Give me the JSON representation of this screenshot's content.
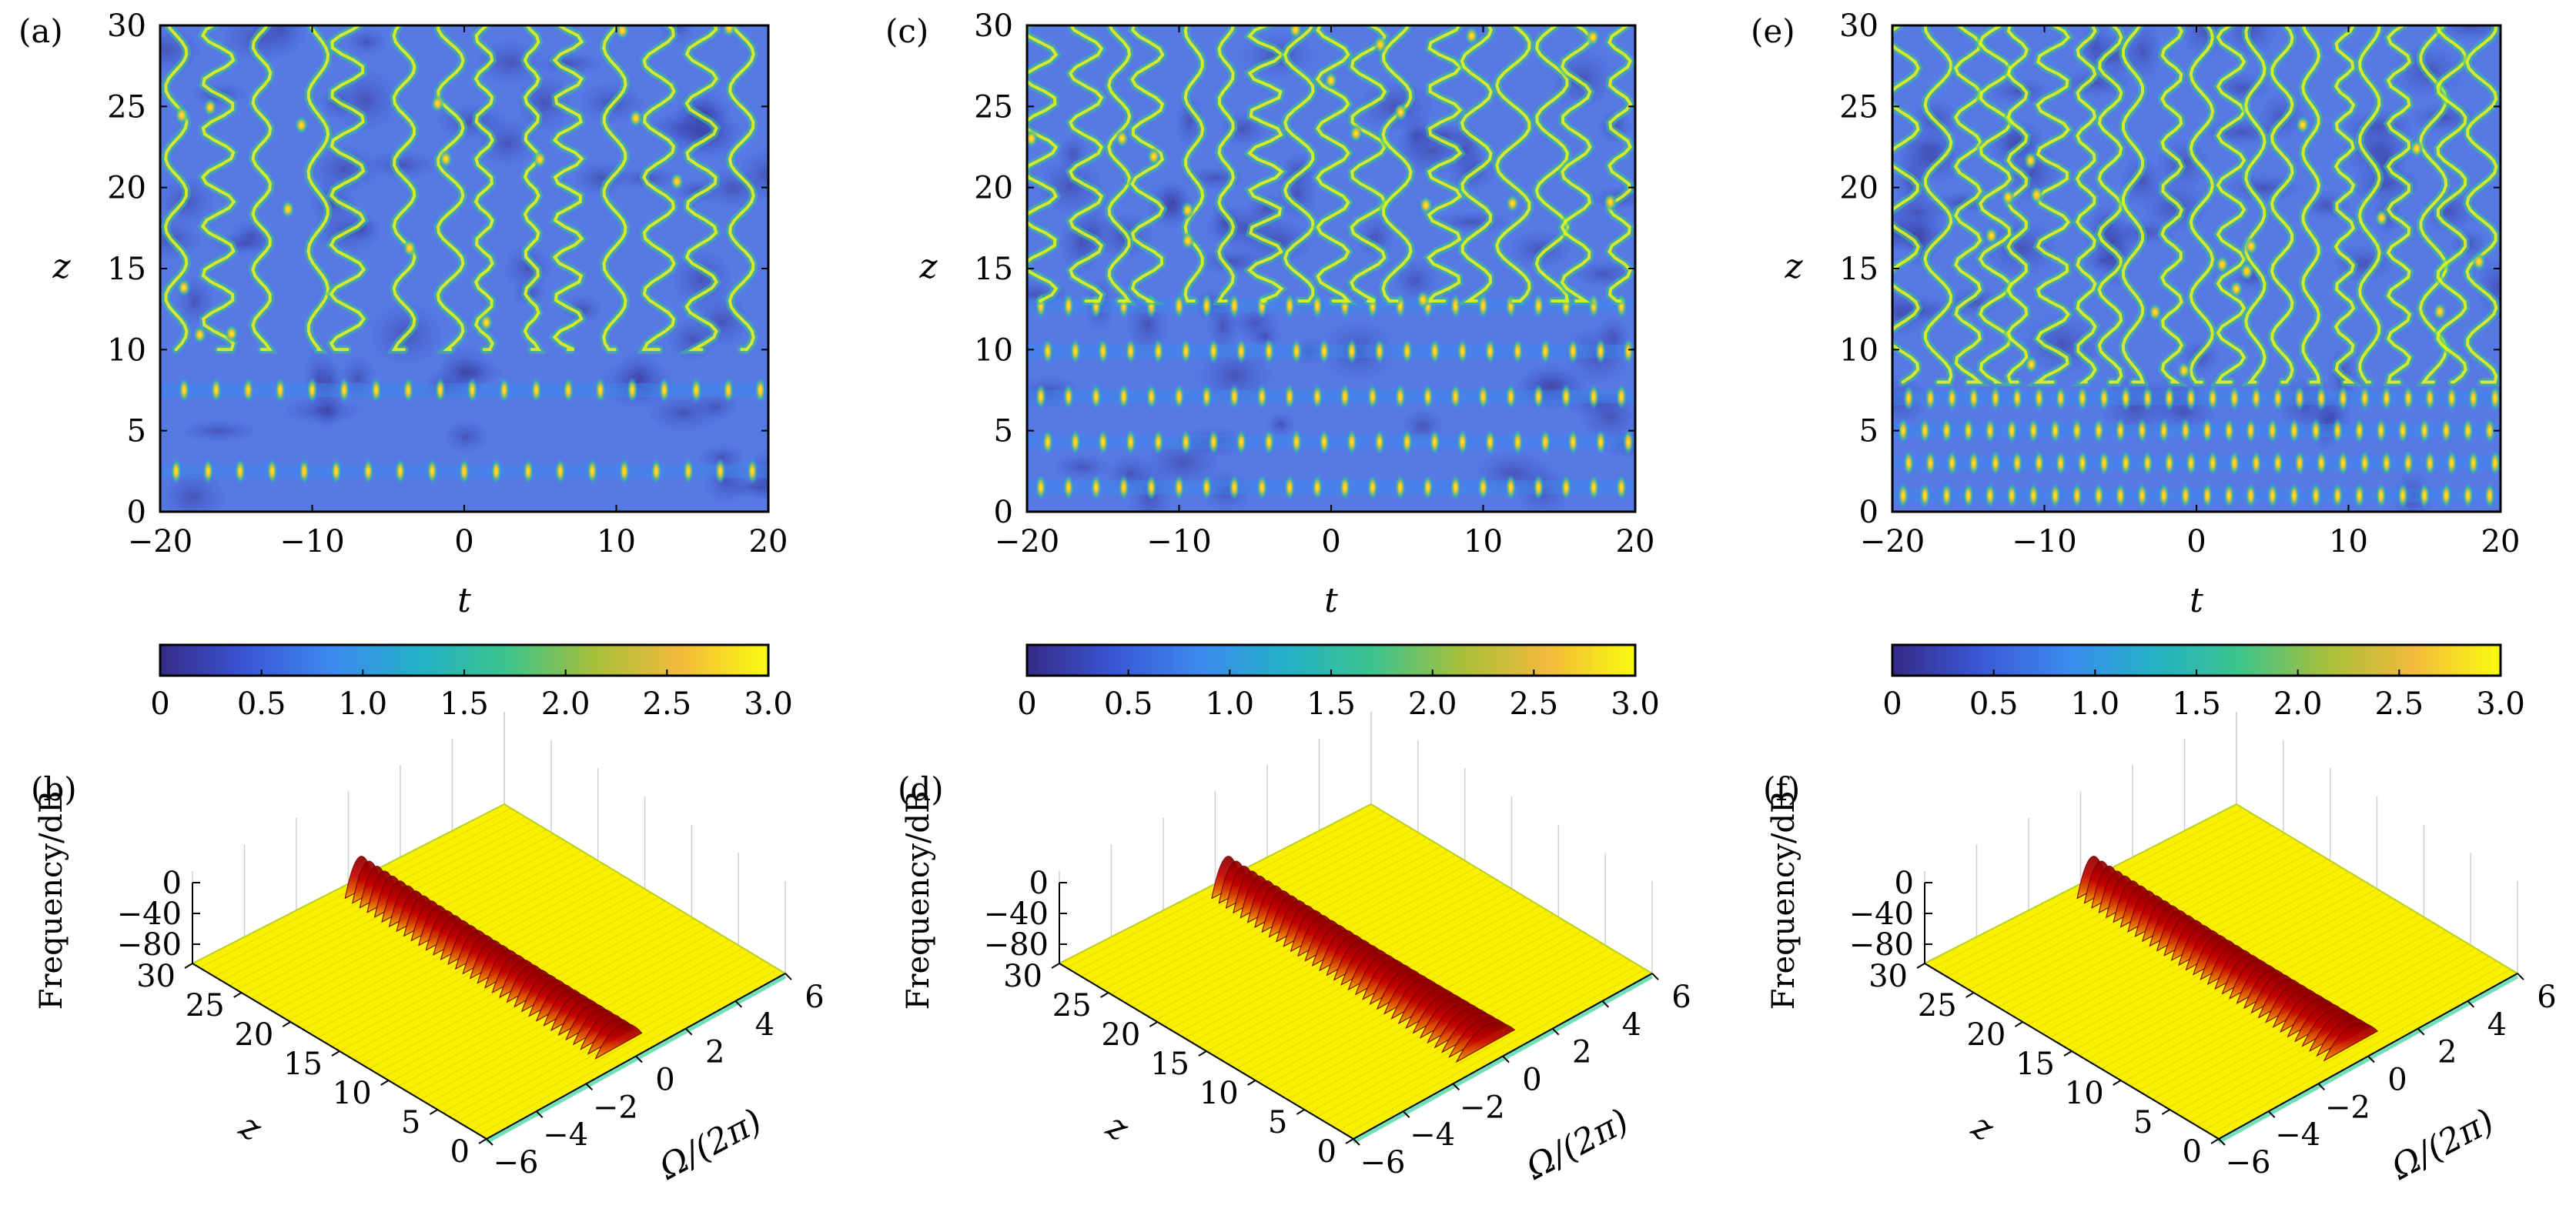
{
  "colors": {
    "colormap": [
      "#352a87",
      "#3a56d6",
      "#3c8aef",
      "#22b1c6",
      "#3dc48d",
      "#a6bf3a",
      "#f4ba3c",
      "#f9fb0e"
    ],
    "spectrum": [
      "#f9f400",
      "#f0b000",
      "#e05a00",
      "#c40000",
      "#8a0000"
    ],
    "frame": "#000000"
  },
  "chart_data": [
    {
      "panel_label": "(a)",
      "type": "heatmap",
      "xlabel": "t",
      "ylabel": "z",
      "xlim": [
        -20,
        20
      ],
      "ylim": [
        0,
        30
      ],
      "xticks": [
        "−20",
        "−10",
        "0",
        "10",
        "20"
      ],
      "yticks": [
        "0",
        "5",
        "10",
        "15",
        "20",
        "25",
        "30"
      ],
      "colorbar": {
        "range": [
          0,
          3.0
        ],
        "ticks": [
          "0",
          "0.5",
          "1.0",
          "1.5",
          "2.0",
          "2.5",
          "3.0"
        ]
      },
      "bright_rows_z": [
        2.5,
        7.5
      ],
      "columns_per_row": 19,
      "turbulence_z_start": 10
    },
    {
      "panel_label": "(c)",
      "type": "heatmap",
      "xlabel": "t",
      "ylabel": "z",
      "xlim": [
        -20,
        20
      ],
      "ylim": [
        0,
        30
      ],
      "xticks": [
        "−20",
        "−10",
        "0",
        "10",
        "20"
      ],
      "yticks": [
        "0",
        "5",
        "10",
        "15",
        "20",
        "25",
        "30"
      ],
      "colorbar": {
        "range": [
          0,
          3.0
        ],
        "ticks": [
          "0",
          "0.5",
          "1.0",
          "1.5",
          "2.0",
          "2.5",
          "3.0"
        ]
      },
      "bright_rows_z": [
        1.5,
        4.3,
        7.1,
        9.9,
        12.7
      ],
      "columns_per_row": 22,
      "turbulence_z_start": 13
    },
    {
      "panel_label": "(e)",
      "type": "heatmap",
      "xlabel": "t",
      "ylabel": "z",
      "xlim": [
        -20,
        20
      ],
      "ylim": [
        0,
        30
      ],
      "xticks": [
        "−20",
        "−10",
        "0",
        "10",
        "20"
      ],
      "yticks": [
        "0",
        "5",
        "10",
        "15",
        "20",
        "25",
        "30"
      ],
      "colorbar": {
        "range": [
          0,
          3.0
        ],
        "ticks": [
          "0",
          "0.5",
          "1.0",
          "1.5",
          "2.0",
          "2.5",
          "3.0"
        ]
      },
      "bright_rows_z": [
        1.0,
        3.0,
        5.0,
        7.0
      ],
      "columns_per_row": 28,
      "turbulence_z_start": 8
    },
    {
      "panel_label": "(b)",
      "type": "area",
      "zlabel": "Frequency/dB",
      "ylabel": "z",
      "xlabel": "Ω/(2π)",
      "zticks": [
        "0",
        "−40",
        "−80"
      ],
      "zlim": [
        -80,
        0
      ],
      "yticks": [
        "0",
        "5",
        "10",
        "15",
        "20",
        "25",
        "30"
      ],
      "ylim": [
        0,
        30
      ],
      "xticks": [
        "−6",
        "−4",
        "−2",
        "0",
        "2",
        "4",
        "6"
      ],
      "xlim": [
        -6,
        6
      ],
      "peak_half_width": [
        0.55,
        0.95
      ]
    },
    {
      "panel_label": "(d)",
      "type": "area",
      "zlabel": "Frequency/dB",
      "ylabel": "z",
      "xlabel": "Ω/(2π)",
      "zticks": [
        "0",
        "−40",
        "−80"
      ],
      "zlim": [
        -80,
        0
      ],
      "yticks": [
        "0",
        "5",
        "10",
        "15",
        "20",
        "25",
        "30"
      ],
      "ylim": [
        0,
        30
      ],
      "xticks": [
        "−6",
        "−4",
        "−2",
        "0",
        "2",
        "4",
        "6"
      ],
      "xlim": [
        -6,
        6
      ],
      "peak_half_width": [
        0.55,
        1.2
      ]
    },
    {
      "panel_label": "(f)",
      "type": "area",
      "zlabel": "Frequency/dB",
      "ylabel": "z",
      "xlabel": "Ω/(2π)",
      "zticks": [
        "0",
        "−40",
        "−80"
      ],
      "zlim": [
        -80,
        0
      ],
      "yticks": [
        "0",
        "5",
        "10",
        "15",
        "20",
        "25",
        "30"
      ],
      "ylim": [
        0,
        30
      ],
      "xticks": [
        "−6",
        "−4",
        "−2",
        "0",
        "2",
        "4",
        "6"
      ],
      "xlim": [
        -6,
        6
      ],
      "peak_half_width": [
        0.55,
        1.1
      ]
    }
  ]
}
